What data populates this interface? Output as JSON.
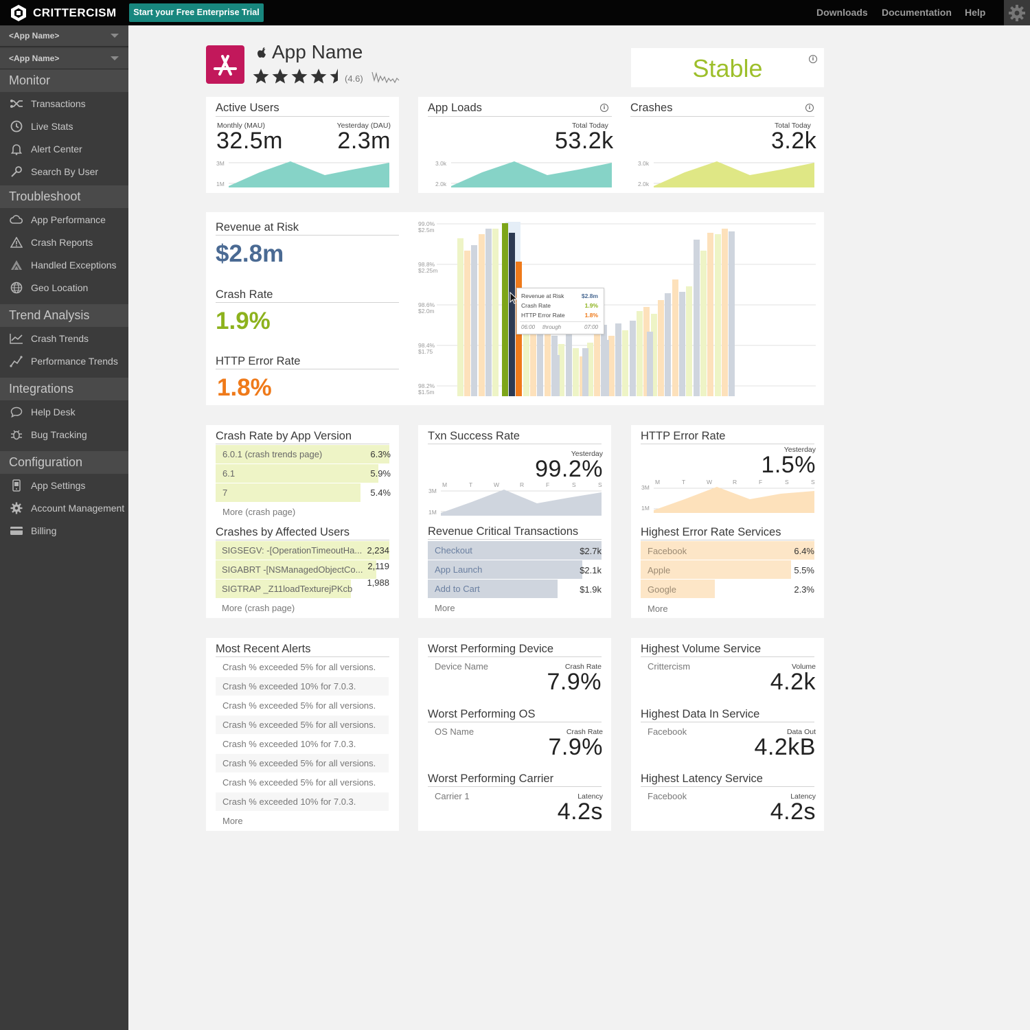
{
  "topbar": {
    "logo_text": "CRITTERCISM",
    "trial_label": "Start your Free Enterprise Trial",
    "links": [
      "Downloads",
      "Documentation",
      "Help"
    ]
  },
  "sidebar": {
    "app_selectors": [
      "<App Name>",
      "<App Name>"
    ],
    "sections": [
      {
        "title": "Monitor",
        "items": [
          {
            "label": "Transactions",
            "icon": "transactions-icon"
          },
          {
            "label": "Live Stats",
            "icon": "clock-icon"
          },
          {
            "label": "Alert Center",
            "icon": "bell-icon"
          },
          {
            "label": "Search By User",
            "icon": "key-icon"
          }
        ]
      },
      {
        "title": "Troubleshoot",
        "items": [
          {
            "label": "App Performance",
            "icon": "cloud-icon"
          },
          {
            "label": "Crash Reports",
            "icon": "warning-icon"
          },
          {
            "label": "Handled Exceptions",
            "icon": "exception-icon"
          },
          {
            "label": "Geo Location",
            "icon": "globe-icon"
          }
        ]
      },
      {
        "title": "Trend Analysis",
        "items": [
          {
            "label": "Crash Trends",
            "icon": "line-chart-icon"
          },
          {
            "label": "Performance Trends",
            "icon": "trend-icon"
          }
        ]
      },
      {
        "title": "Integrations",
        "items": [
          {
            "label": "Help Desk",
            "icon": "chat-icon"
          },
          {
            "label": "Bug Tracking",
            "icon": "bug-icon"
          }
        ]
      },
      {
        "title": "Configuration",
        "items": [
          {
            "label": "App Settings",
            "icon": "phone-icon"
          },
          {
            "label": "Account Management",
            "icon": "gear-icon"
          },
          {
            "label": "Billing",
            "icon": "card-icon"
          }
        ]
      }
    ]
  },
  "app": {
    "name": "App Name",
    "rating": "(4.6)",
    "rating_value": 4.6,
    "status": "Stable"
  },
  "active_users": {
    "title": "Active Users",
    "mau_label": "Monthly (MAU)",
    "mau": "32.5m",
    "dau_label": "Yesterday (DAU)",
    "dau": "2.3m",
    "ticks": [
      "3M",
      "1M"
    ]
  },
  "app_loads": {
    "title": "App Loads",
    "label": "Total Today",
    "value": "53.2k",
    "ticks": [
      "3.0k",
      "2.0k"
    ]
  },
  "crashes": {
    "title": "Crashes",
    "label": "Total Today",
    "value": "3.2k",
    "ticks": [
      "3.0k",
      "2.0k"
    ]
  },
  "revenue": {
    "risk_title": "Revenue at Risk",
    "risk_value": "$2.8m",
    "crash_title": "Crash Rate",
    "crash_value": "1.9%",
    "http_title": "HTTP Error Rate",
    "http_value": "1.8%"
  },
  "main_chart": {
    "y_ticks": [
      {
        "pct": "99.0%",
        "money": "$2.5m"
      },
      {
        "pct": "98.8%",
        "money": "$2.25m"
      },
      {
        "pct": "98.6%",
        "money": "$2.0m"
      },
      {
        "pct": "98.4%",
        "money": "$1.75"
      },
      {
        "pct": "98.2%",
        "money": "$1.5m"
      }
    ],
    "tooltip": {
      "rows": [
        {
          "label": "Revenue at Risk",
          "value": "$2.8m"
        },
        {
          "label": "Crash Rate",
          "value": "1.9%"
        },
        {
          "label": "HTTP Error Rate",
          "value": "1.8%"
        }
      ],
      "from": "06:00",
      "through": "through",
      "to": "07:00"
    }
  },
  "crash_by_version": {
    "title": "Crash Rate by App Version",
    "rows": [
      {
        "label": "6.0.1 (crash trends page)",
        "value": "6.3%"
      },
      {
        "label": "6.1",
        "value": "5.9%"
      },
      {
        "label": "7",
        "value": "5.4%"
      }
    ],
    "more": "More (crash page)"
  },
  "crashes_by_users": {
    "title": "Crashes by Affected Users",
    "rows": [
      {
        "label": "SIGSEGV: -[OperationTimeoutHa...",
        "value": "2,234"
      },
      {
        "label": "SIGABRT -[NSManagedObjectCo...",
        "value": "2,119"
      },
      {
        "label": "SIGTRAP _Z11loadTexturejPKcb",
        "value": "1,988"
      }
    ],
    "more": "More (crash page)"
  },
  "txn_success": {
    "title": "Txn Success Rate",
    "label": "Yesterday",
    "value": "99.2%",
    "days": [
      "M",
      "T",
      "W",
      "R",
      "F",
      "S",
      "S"
    ],
    "ticks": [
      "3M",
      "1M"
    ]
  },
  "revenue_txn": {
    "title": "Revenue Critical Transactions",
    "rows": [
      {
        "label": "Checkout",
        "value": "$2.7k"
      },
      {
        "label": "App Launch",
        "value": "$2.1k"
      },
      {
        "label": "Add to Cart",
        "value": "$1.9k"
      }
    ],
    "more": "More"
  },
  "http_error": {
    "title": "HTTP Error Rate",
    "label": "Yesterday",
    "value": "1.5%",
    "days": [
      "M",
      "T",
      "W",
      "R",
      "F",
      "S",
      "S"
    ],
    "ticks": [
      "3M",
      "1M"
    ]
  },
  "error_services": {
    "title": "Highest Error Rate Services",
    "rows": [
      {
        "label": "Facebook",
        "value": "6.4%"
      },
      {
        "label": "Apple",
        "value": "5.5%"
      },
      {
        "label": "Google",
        "value": "2.3%"
      }
    ],
    "more": "More"
  },
  "alerts": {
    "title": "Most Recent Alerts",
    "rows": [
      "Crash % exceeded 5% for all versions.",
      "Crash % exceeded 10% for 7.0.3.",
      "Crash % exceeded 5% for all versions.",
      "Crash % exceeded 5% for all versions.",
      "Crash % exceeded 10% for 7.0.3.",
      "Crash % exceeded 5% for all versions.",
      "Crash % exceeded 5% for all versions.",
      "Crash % exceeded 10% for 7.0.3."
    ],
    "more": "More"
  },
  "worst": {
    "device": {
      "title": "Worst Performing Device",
      "name": "Device Name",
      "label": "Crash Rate",
      "value": "7.9%"
    },
    "os": {
      "title": "Worst Performing OS",
      "name": "OS Name",
      "label": "Crash Rate",
      "value": "7.9%"
    },
    "carrier": {
      "title": "Worst Performing Carrier",
      "name": "Carrier 1",
      "label": "Latency",
      "value": "4.2s"
    }
  },
  "highest": {
    "volume": {
      "title": "Highest Volume Service",
      "name": "Crittercism",
      "label": "Volume",
      "value": "4.2k"
    },
    "data": {
      "title": "Highest Data In Service",
      "name": "Facebook",
      "label": "Data Out",
      "value": "4.2kB"
    },
    "latency": {
      "title": "Highest Latency Service",
      "name": "Facebook",
      "label": "Latency",
      "value": "4.2s"
    }
  },
  "colors": {
    "teal": "#18877e",
    "area_teal": "#86d3c7",
    "area_lime": "#dfe785",
    "green_text": "#8db21d",
    "orange_text": "#ef7a1a",
    "blue_text": "#4a6a93",
    "bar_lime": "#eef4c6",
    "bar_orange": "#fde1bb",
    "bar_slate": "#cfd5de"
  }
}
